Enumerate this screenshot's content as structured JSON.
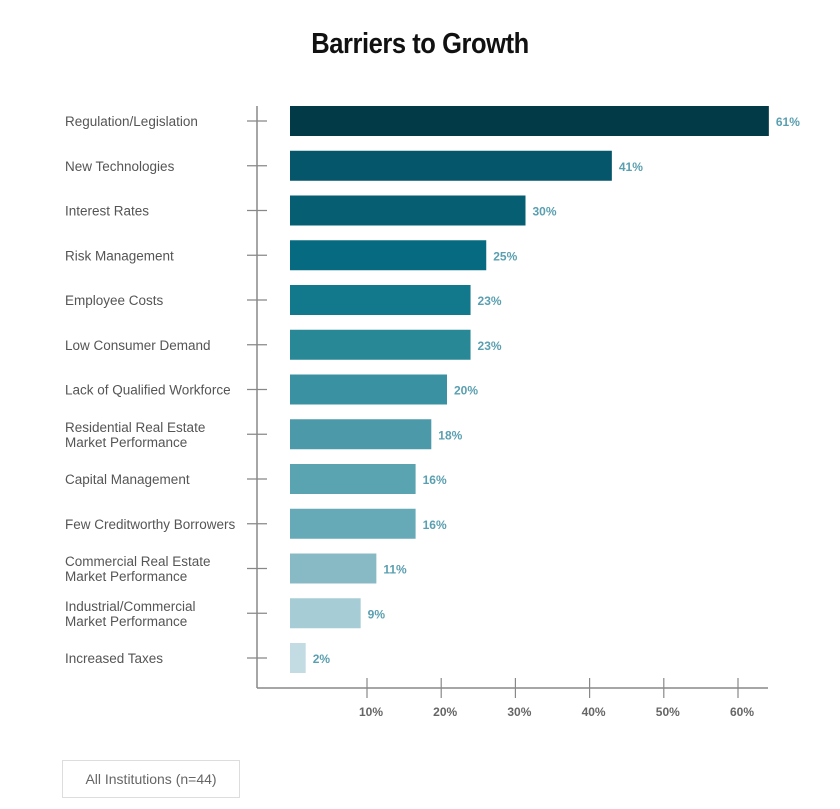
{
  "chart_data": {
    "type": "bar",
    "orientation": "horizontal",
    "title": "Barriers to Growth",
    "categories": [
      [
        "Regulation/Legislation"
      ],
      [
        "New Technologies"
      ],
      [
        "Interest Rates"
      ],
      [
        "Risk Management"
      ],
      [
        "Employee Costs"
      ],
      [
        "Low Consumer Demand"
      ],
      [
        "Lack of Qualified Workforce"
      ],
      [
        "Residential Real Estate",
        "Market Performance"
      ],
      [
        "Capital Management"
      ],
      [
        "Few Creditworthy Borrowers"
      ],
      [
        "Commercial Real Estate",
        "Market Performance"
      ],
      [
        "Industrial/Commercial",
        "Market Performance"
      ],
      [
        "Increased Taxes"
      ]
    ],
    "values": [
      61,
      41,
      30,
      25,
      23,
      23,
      20,
      18,
      16,
      16,
      11,
      9,
      2
    ],
    "value_labels": [
      "61%",
      "41%",
      "30%",
      "25%",
      "23%",
      "23%",
      "20%",
      "18%",
      "16%",
      "16%",
      "11%",
      "9%",
      "2%"
    ],
    "colors": [
      "#023a47",
      "#05566a",
      "#055e72",
      "#066a80",
      "#12798c",
      "#288896",
      "#3a91a1",
      "#4c9aa9",
      "#5aa3b1",
      "#67aab7",
      "#88bac5",
      "#a6cdd5",
      "#c3dce3"
    ],
    "x_ticks": [
      "10%",
      "20%",
      "30%",
      "40%",
      "50%",
      "60%"
    ],
    "xlim": [
      0,
      60
    ],
    "legend": "All Institutions (n=44)",
    "legend_position": "bottom-left"
  }
}
